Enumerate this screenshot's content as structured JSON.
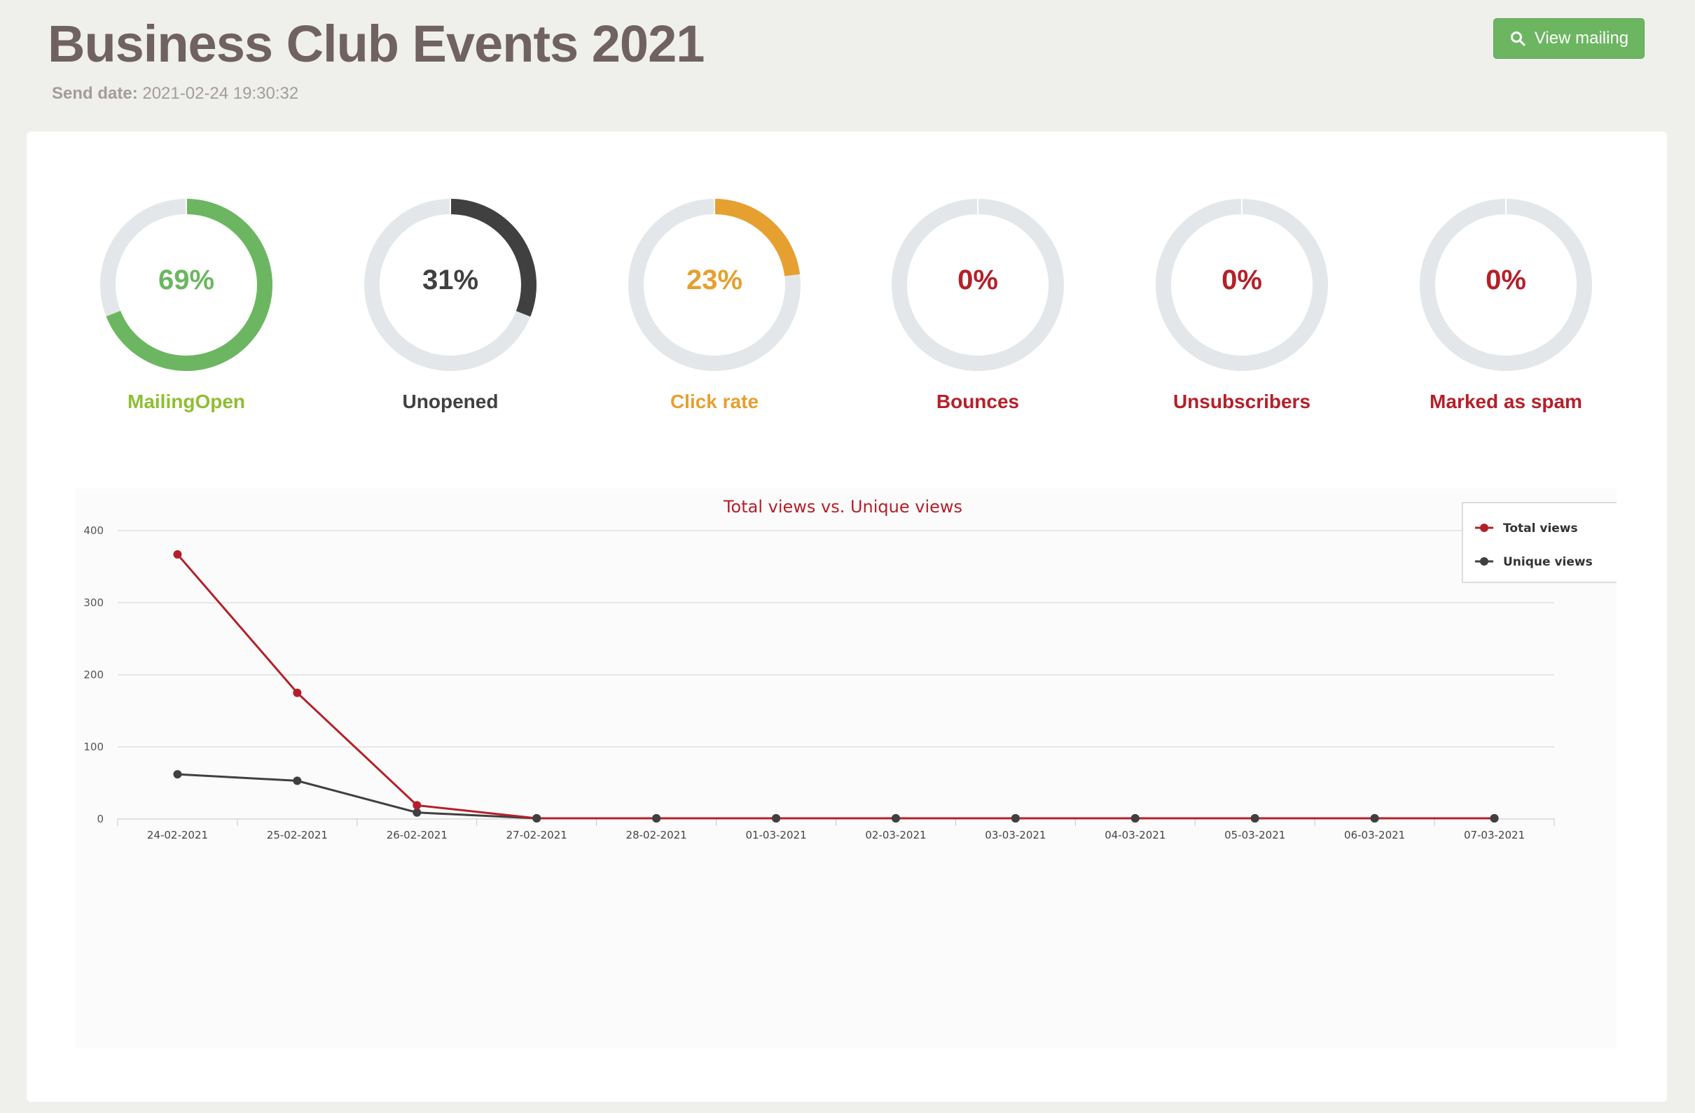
{
  "header": {
    "title": "Business Club Events 2021",
    "send_date_label": "Send date:",
    "send_date_value": "2021-02-24 19:30:32",
    "view_button_label": "View mailing"
  },
  "stats": [
    {
      "label": "MailingOpen",
      "percent_text": "69%",
      "fraction": 0.69,
      "color": "#6cb661",
      "label_color": "#8fbe33",
      "pct_color": "#6cb661"
    },
    {
      "label": "Unopened",
      "percent_text": "31%",
      "fraction": 0.31,
      "color": "#404040",
      "label_color": "#404040",
      "pct_color": "#404040"
    },
    {
      "label": "Click rate",
      "percent_text": "23%",
      "fraction": 0.23,
      "color": "#e5a030",
      "label_color": "#e5a030",
      "pct_color": "#e5a030"
    },
    {
      "label": "Bounces",
      "percent_text": "0%",
      "fraction": 0,
      "color": "#b4202a",
      "label_color": "#b4202a",
      "pct_color": "#b4202a"
    },
    {
      "label": "Unsubscribers",
      "percent_text": "0%",
      "fraction": 0,
      "color": "#b4202a",
      "label_color": "#b4202a",
      "pct_color": "#b4202a"
    },
    {
      "label": "Marked as spam",
      "percent_text": "0%",
      "fraction": 0,
      "color": "#b4202a",
      "label_color": "#b4202a",
      "pct_color": "#b4202a"
    }
  ],
  "chart_data": {
    "type": "line",
    "title": "Total views vs. Unique views",
    "categories": [
      "24-02-2021",
      "25-02-2021",
      "26-02-2021",
      "27-02-2021",
      "28-02-2021",
      "01-03-2021",
      "02-03-2021",
      "03-03-2021",
      "04-03-2021",
      "05-03-2021",
      "06-03-2021",
      "07-03-2021"
    ],
    "series": [
      {
        "name": "Total views",
        "color": "#b4202a",
        "values": [
          367,
          175,
          19,
          1,
          1,
          1,
          1,
          1,
          1,
          1,
          1,
          1
        ]
      },
      {
        "name": "Unique views",
        "color": "#404040",
        "values": [
          62,
          53,
          9,
          1,
          1,
          1,
          1,
          1,
          1,
          1,
          1,
          1
        ]
      }
    ],
    "yticks": [
      0,
      100,
      200,
      300,
      400
    ],
    "ylim": [
      0,
      400
    ],
    "grid": true,
    "legend_position": "top-right"
  }
}
